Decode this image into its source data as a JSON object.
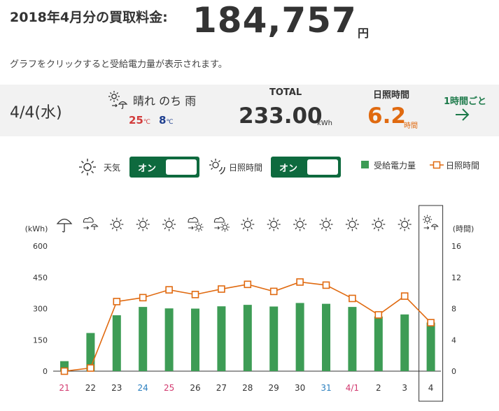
{
  "header": {
    "label": "2018年4月分の買取料金:",
    "amount": "184,757",
    "unit": "円",
    "note": "グラフをクリックすると受給電力量が表示されます。"
  },
  "summary": {
    "date": "4/4(水)",
    "weather_icon": "sun-then-rain-icon",
    "weather_text": "晴れ のち 雨",
    "temp_high": "25",
    "temp_low": "8",
    "temp_unit": "℃",
    "total_label": "TOTAL",
    "total_value": "233.00",
    "total_unit": "kWh",
    "sunshine_label": "日照時間",
    "sunshine_value": "6.2",
    "sunshine_unit": "時間",
    "per_hour_label": "1時間ごと",
    "colors": {
      "high": "#d23c3c",
      "low": "#1f3f8f",
      "sunshine": "#e06a10",
      "link": "#1d7a4a"
    }
  },
  "controls": {
    "weather_label": "天気",
    "weather_toggle": "オン",
    "sunshine_label": "日照時間",
    "sunshine_toggle": "オン",
    "legend_bar": "受給電力量",
    "legend_line": "日照時間",
    "toggle_color": "#0e6a3e"
  },
  "chart_data": {
    "type": "bar",
    "categories": [
      "21",
      "22",
      "23",
      "24",
      "25",
      "26",
      "27",
      "28",
      "29",
      "30",
      "31",
      "4/1",
      "2",
      "3",
      "4"
    ],
    "category_colors": [
      "#d2386e",
      "#333333",
      "#333333",
      "#2a7fbf",
      "#d2386e",
      "#333333",
      "#333333",
      "#333333",
      "#333333",
      "#333333",
      "#2a7fbf",
      "#d2386e",
      "#333333",
      "#333333",
      "#333333"
    ],
    "weather_icons": [
      "umbrella-icon",
      "cloud-to-rain-icon",
      "sun-icon",
      "sun-icon",
      "sun-icon",
      "cloud-to-sun-icon",
      "cloud-to-sun-icon",
      "sun-icon",
      "sun-icon",
      "sun-icon",
      "sun-icon",
      "sun-icon",
      "sun-icon",
      "sun-icon",
      "sun-to-rain-icon"
    ],
    "selected_index": 14,
    "series": [
      {
        "name": "受給電力量",
        "axis": "left",
        "type": "bar",
        "color": "#3d9c55",
        "values": [
          48,
          183,
          268,
          308,
          301,
          300,
          311,
          318,
          310,
          327,
          323,
          308,
          262,
          272,
          233
        ]
      },
      {
        "name": "日照時間",
        "axis": "right",
        "type": "line",
        "color": "#e06a10",
        "values": [
          0,
          0.4,
          8.9,
          9.4,
          10.4,
          9.8,
          10.5,
          11.1,
          10.2,
          11.4,
          11.0,
          9.3,
          7.2,
          9.6,
          6.2
        ]
      }
    ],
    "ylabel_left": "(kWh)",
    "ylabel_right": "(時間)",
    "ylim_left": [
      0,
      600
    ],
    "ylim_right": [
      0,
      16
    ],
    "yticks_left": [
      "0",
      "150",
      "300",
      "450",
      "600"
    ],
    "yticks_right": [
      "0",
      "4",
      "8",
      "12",
      "16"
    ],
    "grid": false
  }
}
